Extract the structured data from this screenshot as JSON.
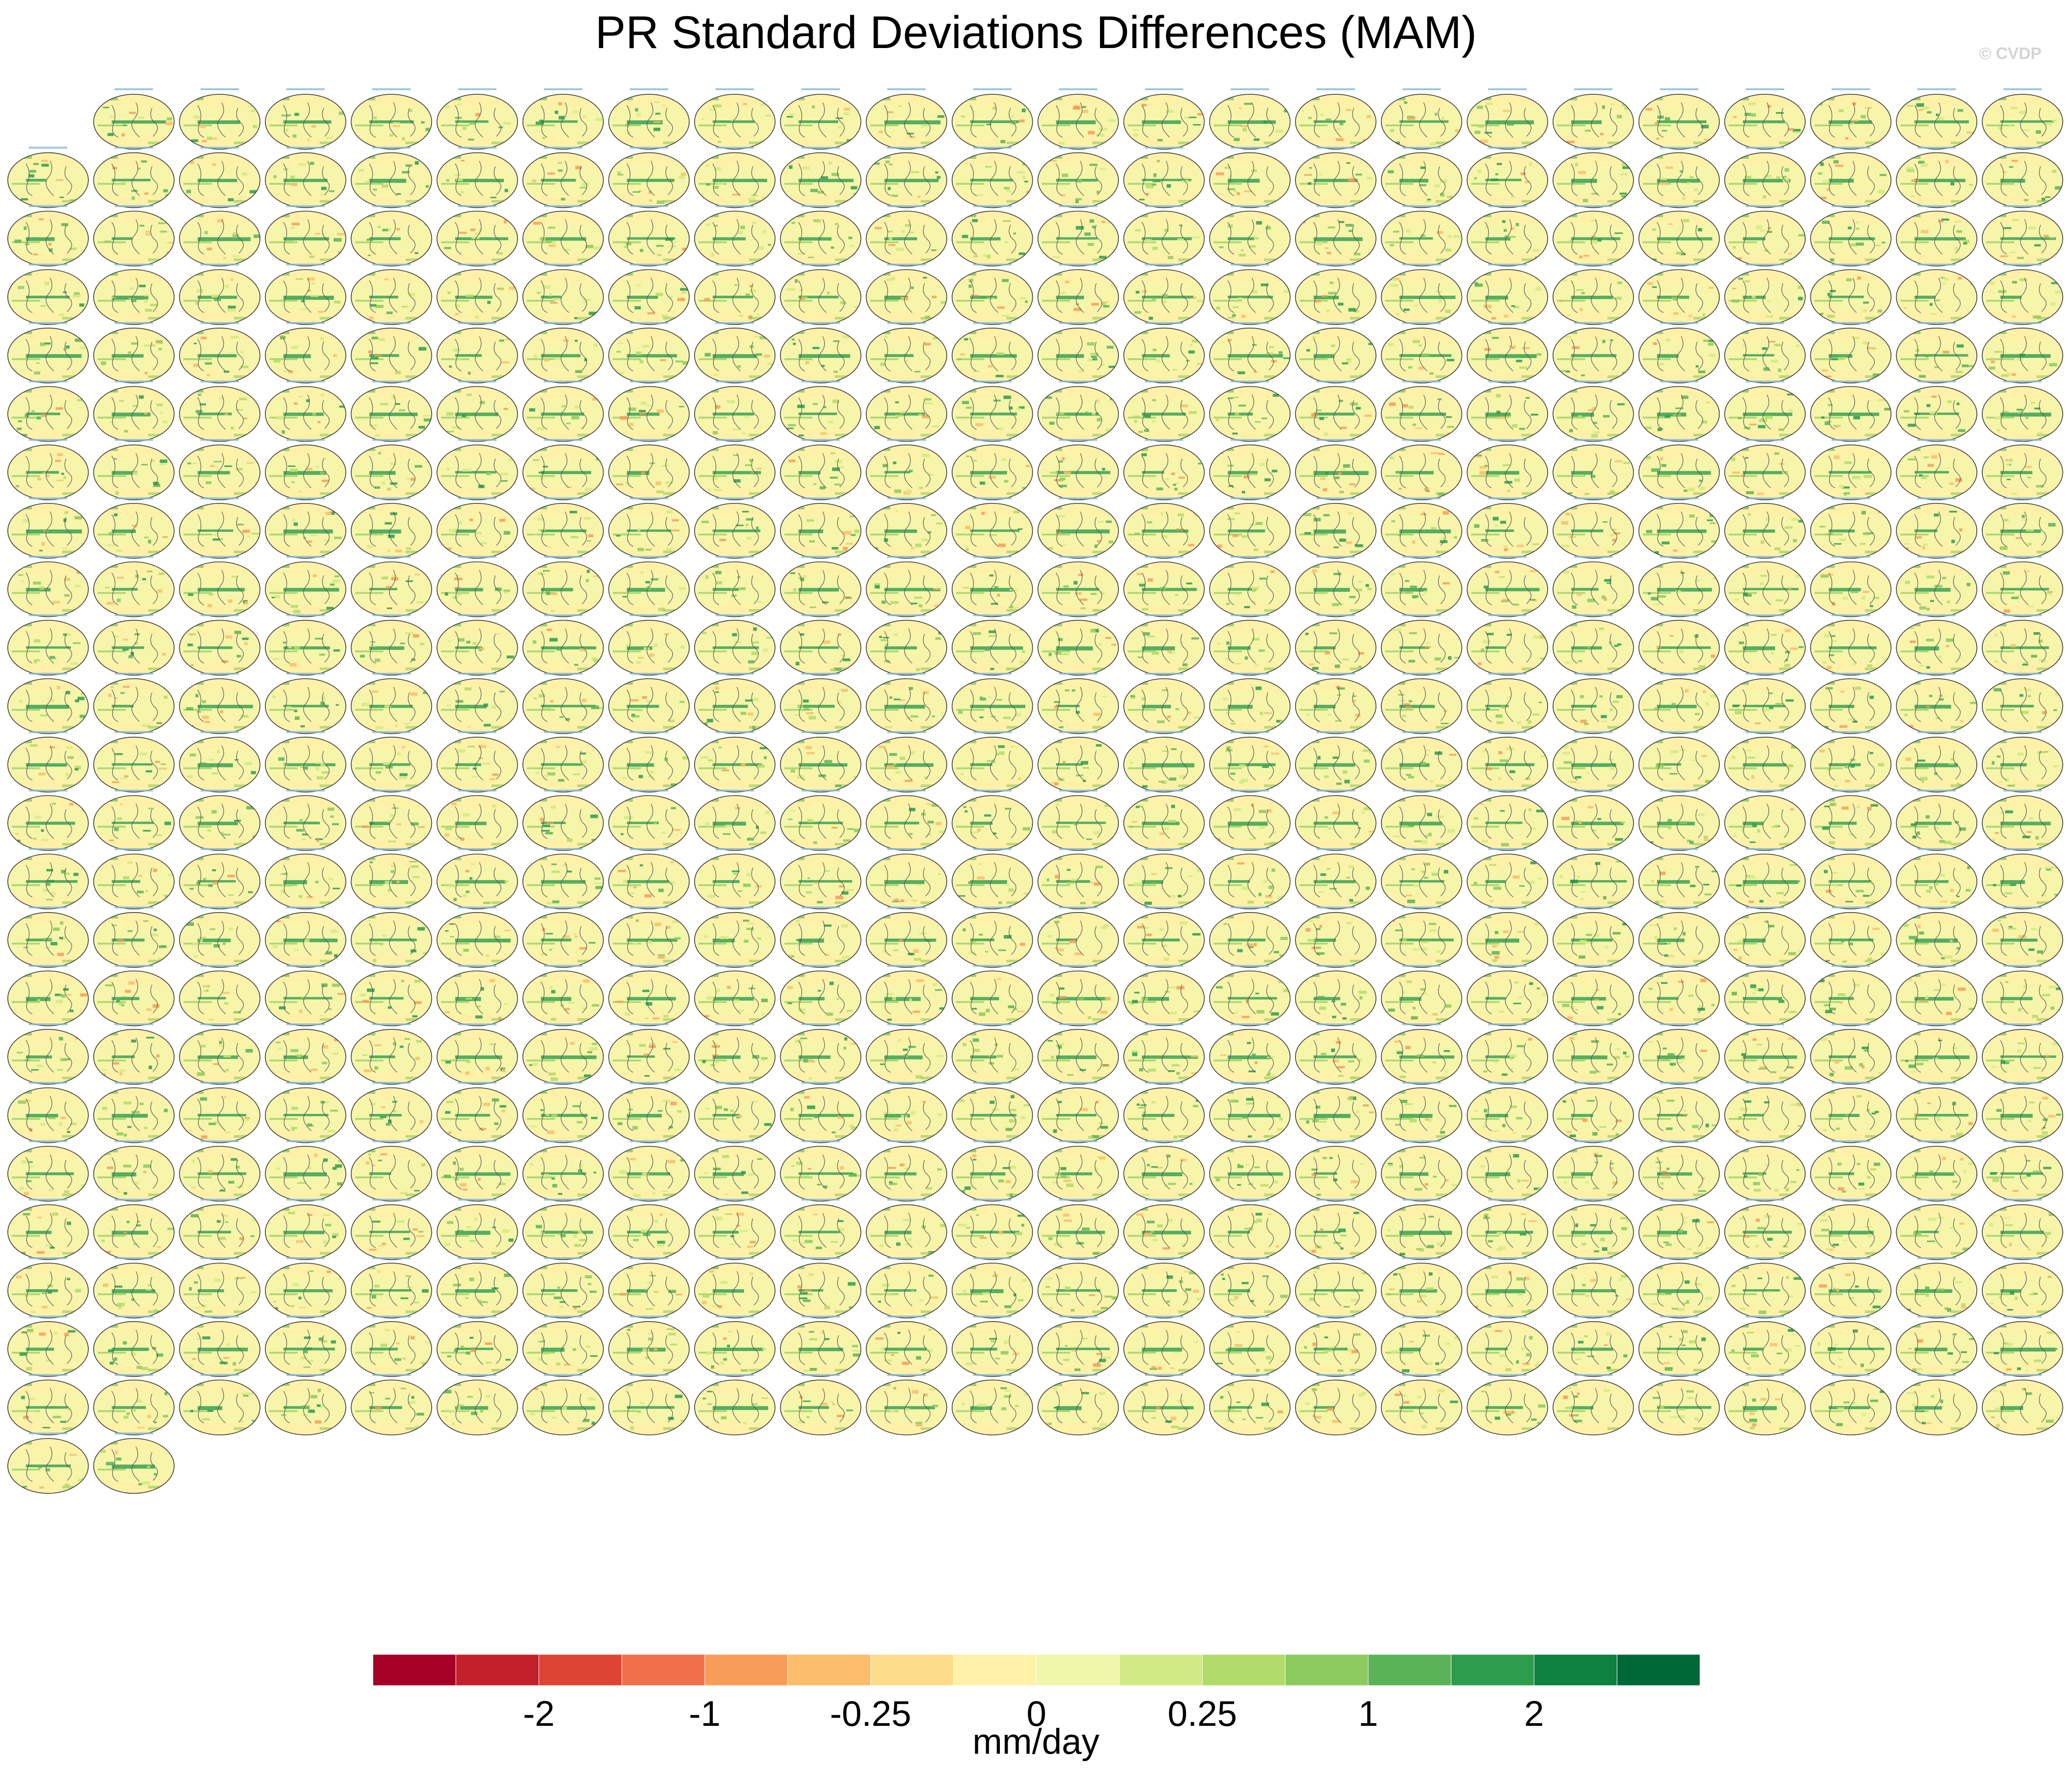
{
  "title": "PR Standard Deviations Differences (MAM)",
  "copyright": "© CVDP",
  "colorbar": {
    "units": "mm/day",
    "colors": [
      "#a50026",
      "#c4202b",
      "#de4432",
      "#f0704a",
      "#f89c5a",
      "#fbbd6c",
      "#fddc8a",
      "#fff2a8",
      "#f0f7ab",
      "#d2ea84",
      "#b1dc6c",
      "#8cca60",
      "#5bb357",
      "#2c9c4d",
      "#0e8040",
      "#006837"
    ],
    "tick_labels": [
      "-2",
      "-1",
      "-0.25",
      "0",
      "0.25",
      "1",
      "2"
    ]
  },
  "chart_data": {
    "type": "map-panel-grid",
    "panel_count": 553,
    "panels_per_full_row": 24,
    "panel_colormap": "colorbar.colors",
    "note_panels": "Each panel is a small global map of PR standard deviation differences (MAM); panel titles are too small to read."
  }
}
